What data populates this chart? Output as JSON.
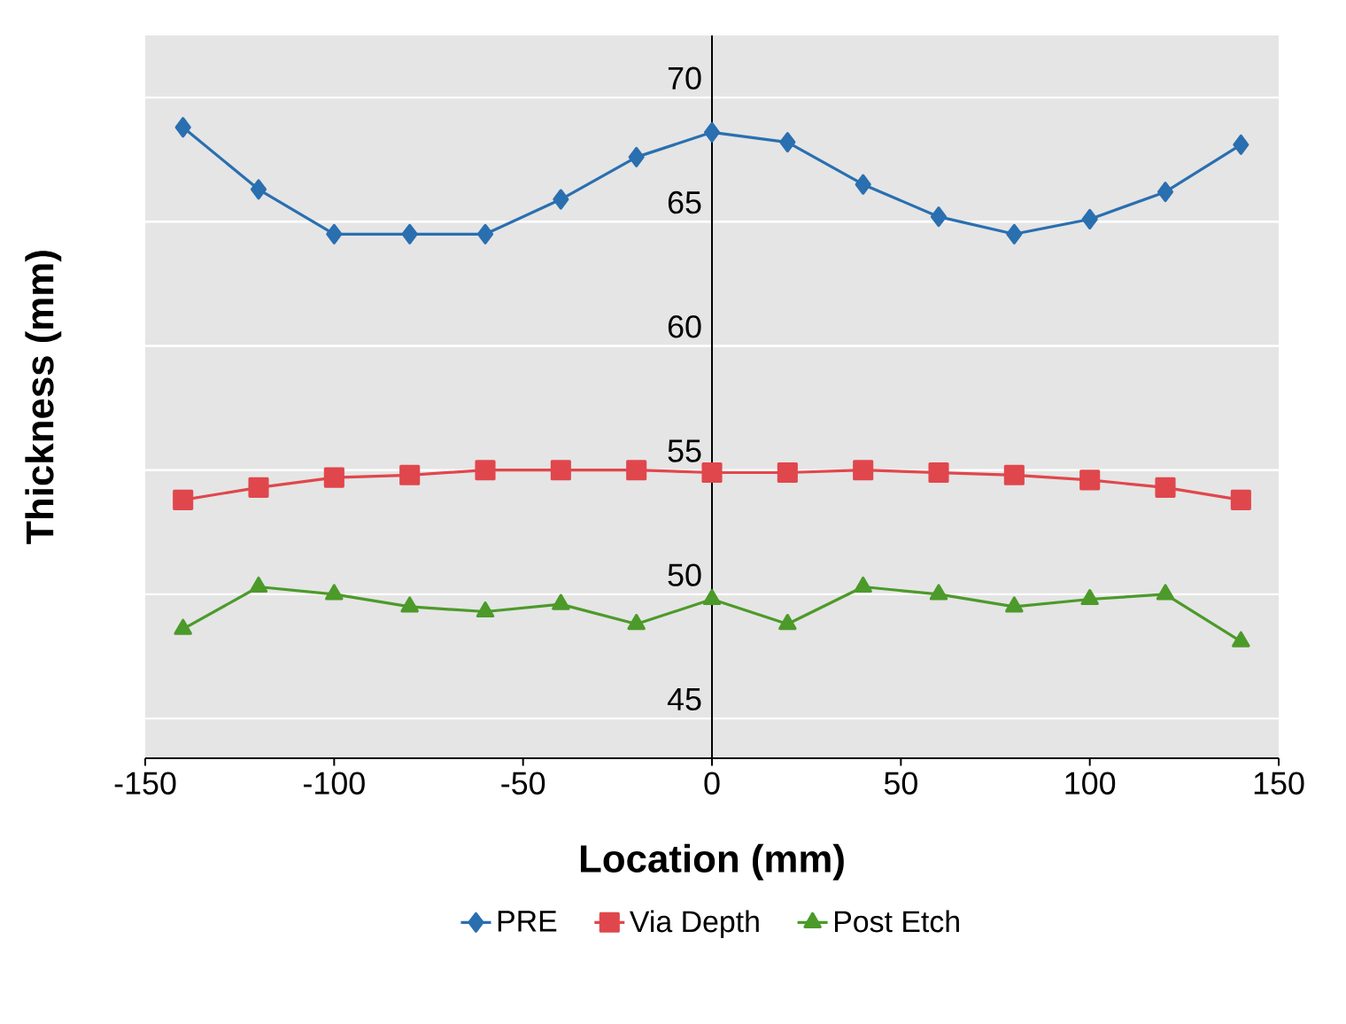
{
  "chart_data": {
    "type": "line",
    "xlabel": "Location (mm)",
    "ylabel": "Thickness (mm)",
    "x": [
      -140,
      -120,
      -100,
      -80,
      -60,
      -40,
      -20,
      0,
      20,
      40,
      60,
      80,
      100,
      120,
      140
    ],
    "series": [
      {
        "name": "PRE",
        "color": "#2a6fb0",
        "marker": "diamond",
        "values": [
          68.8,
          66.3,
          64.5,
          64.5,
          64.5,
          65.9,
          67.6,
          68.6,
          68.2,
          66.5,
          65.2,
          64.5,
          65.1,
          66.2,
          68.1
        ]
      },
      {
        "name": "Via Depth",
        "color": "#e0474c",
        "marker": "square",
        "values": [
          53.8,
          54.3,
          54.7,
          54.8,
          55.0,
          55.0,
          55.0,
          54.9,
          54.9,
          55.0,
          54.9,
          54.8,
          54.6,
          54.3,
          53.8
        ]
      },
      {
        "name": "Post Etch",
        "color": "#4c9a2a",
        "marker": "triangle",
        "values": [
          48.6,
          50.3,
          50.0,
          49.5,
          49.3,
          49.6,
          48.8,
          49.8,
          48.8,
          50.3,
          50.0,
          49.5,
          49.8,
          50.0,
          48.1
        ]
      }
    ],
    "xlim": [
      -150,
      150
    ],
    "ylim": [
      43.4,
      72.5
    ],
    "xticks": [
      -150,
      -100,
      -50,
      0,
      50,
      100,
      150
    ],
    "yticks": [
      45,
      50,
      55,
      60,
      65,
      70
    ],
    "grid": "y",
    "legend": "bottom",
    "line_style": "solid"
  }
}
